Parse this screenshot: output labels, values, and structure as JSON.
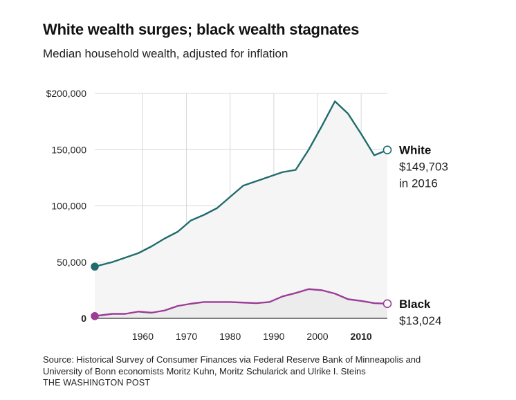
{
  "header": {
    "title": "White wealth surges; black wealth stagnates",
    "subtitle": "Median household wealth, adjusted for inflation"
  },
  "footer": {
    "source_line1": "Source: Historical Survey of Consumer Finances via Federal Reserve Bank of Minneapolis and",
    "source_line2": "University of Bonn economists Moritz Kuhn, Moritz Schularick and Ulrike I. Steins",
    "publisher": "THE WASHINGTON POST"
  },
  "colors": {
    "white_series": "#1f6b6e",
    "black_series": "#9b3d96",
    "area_fill": "#f3f3f3",
    "grid": "#d7d7d7"
  },
  "chart_data": {
    "type": "area",
    "title": "White wealth surges; black wealth stagnates",
    "subtitle": "Median household wealth, adjusted for inflation",
    "xlim": [
      1949,
      2016
    ],
    "ylim": [
      0,
      200000
    ],
    "x_ticks": [
      {
        "value": 1960,
        "label": "1960",
        "bold": false
      },
      {
        "value": 1970,
        "label": "1970",
        "bold": false
      },
      {
        "value": 1980,
        "label": "1980",
        "bold": false
      },
      {
        "value": 1990,
        "label": "1990",
        "bold": false
      },
      {
        "value": 2000,
        "label": "2000",
        "bold": false
      },
      {
        "value": 2010,
        "label": "2010",
        "bold": true
      }
    ],
    "y_ticks": [
      {
        "value": 0,
        "label": "0"
      },
      {
        "value": 50000,
        "label": "50,000"
      },
      {
        "value": 100000,
        "label": "100,000"
      },
      {
        "value": 150000,
        "label": "150,000"
      },
      {
        "value": 200000,
        "label": "$200,000"
      }
    ],
    "grid": true,
    "series": [
      {
        "name": "White",
        "color": "#1f6b6e",
        "end_label": {
          "name": "White",
          "value": "$149,703",
          "note": "in 2016"
        },
        "x": [
          1949,
          1953,
          1956,
          1959,
          1962,
          1965,
          1968,
          1971,
          1974,
          1977,
          1980,
          1983,
          1986,
          1989,
          1992,
          1995,
          1998,
          2001,
          2004,
          2007,
          2010,
          2013,
          2016
        ],
        "y": [
          46000,
          50000,
          54000,
          58000,
          64000,
          71000,
          77000,
          87000,
          92000,
          98000,
          108000,
          118000,
          122000,
          126000,
          130000,
          132000,
          150000,
          171000,
          193000,
          182000,
          164000,
          145000,
          149703
        ]
      },
      {
        "name": "Black",
        "color": "#9b3d96",
        "end_label": {
          "name": "Black",
          "value": "$13,024",
          "note": ""
        },
        "x": [
          1949,
          1953,
          1956,
          1959,
          1962,
          1965,
          1968,
          1971,
          1974,
          1977,
          1980,
          1983,
          1986,
          1989,
          1992,
          1995,
          1998,
          2001,
          2004,
          2007,
          2010,
          2013,
          2016
        ],
        "y": [
          2000,
          4000,
          4000,
          6000,
          5000,
          7000,
          11000,
          13000,
          14500,
          14500,
          14500,
          14000,
          13500,
          14500,
          19500,
          22500,
          26000,
          25000,
          22000,
          17000,
          15500,
          13500,
          13024
        ]
      }
    ]
  }
}
